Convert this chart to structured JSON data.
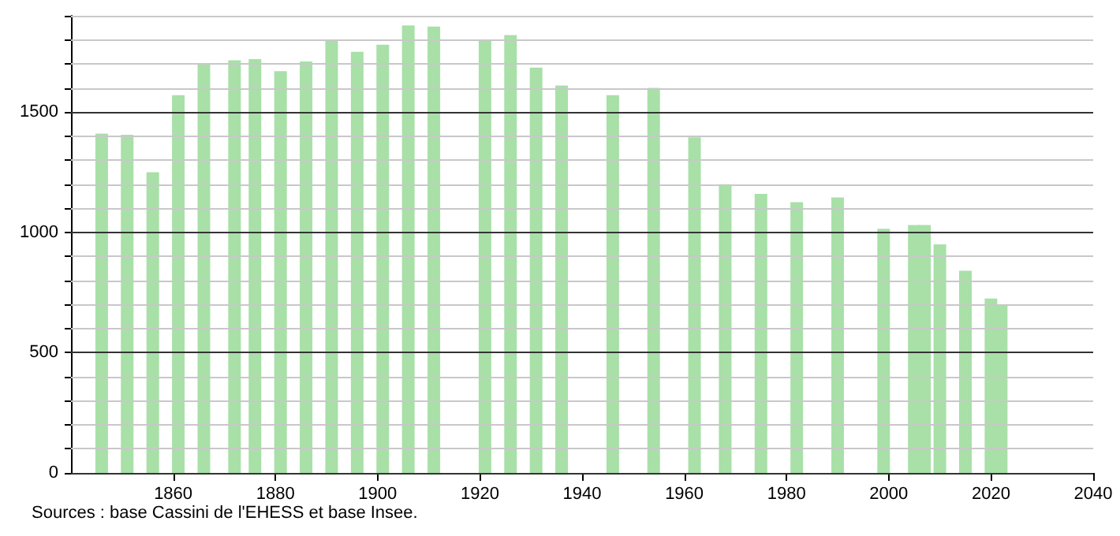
{
  "chart_data": {
    "type": "bar",
    "x": [
      1846,
      1851,
      1856,
      1861,
      1866,
      1872,
      1876,
      1881,
      1886,
      1891,
      1896,
      1901,
      1906,
      1911,
      1921,
      1926,
      1931,
      1936,
      1946,
      1954,
      1962,
      1968,
      1975,
      1982,
      1990,
      1999,
      2005,
      2007,
      2010,
      2015,
      2020,
      2022
    ],
    "values": [
      1410,
      1405,
      1250,
      1570,
      1700,
      1715,
      1720,
      1670,
      1710,
      1800,
      1750,
      1780,
      1860,
      1855,
      1800,
      1820,
      1685,
      1610,
      1570,
      1600,
      1395,
      1200,
      1160,
      1125,
      1145,
      1015,
      1030,
      1030,
      950,
      840,
      725,
      695
    ],
    "color": "#a8e0a8",
    "xlim": [
      1840,
      2040
    ],
    "xticks": [
      1860,
      1880,
      1900,
      1920,
      1940,
      1960,
      1980,
      2000,
      2020,
      2040
    ],
    "ylim": [
      0,
      1900
    ],
    "yticks": [
      0,
      {
        "value": 100,
        "label": null
      },
      {
        "value": 200,
        "label": null
      },
      {
        "value": 300,
        "label": null
      },
      {
        "value": 400,
        "label": null
      },
      500,
      {
        "value": 600,
        "label": null
      },
      {
        "value": 700,
        "label": null
      },
      {
        "value": 800,
        "label": null
      },
      {
        "value": 900,
        "label": null
      },
      1000,
      {
        "value": 1100,
        "label": null
      },
      {
        "value": 1200,
        "label": null
      },
      {
        "value": 1300,
        "label": null
      },
      {
        "value": 1400,
        "label": null
      },
      1500,
      {
        "value": 1600,
        "label": null
      },
      {
        "value": 1700,
        "label": null
      },
      {
        "value": 1800,
        "label": null
      },
      {
        "value": 1900,
        "label": null
      }
    ],
    "grid": "y",
    "annotations": [
      "Sources : base Cassini de l'EHESS et base Insee."
    ]
  }
}
